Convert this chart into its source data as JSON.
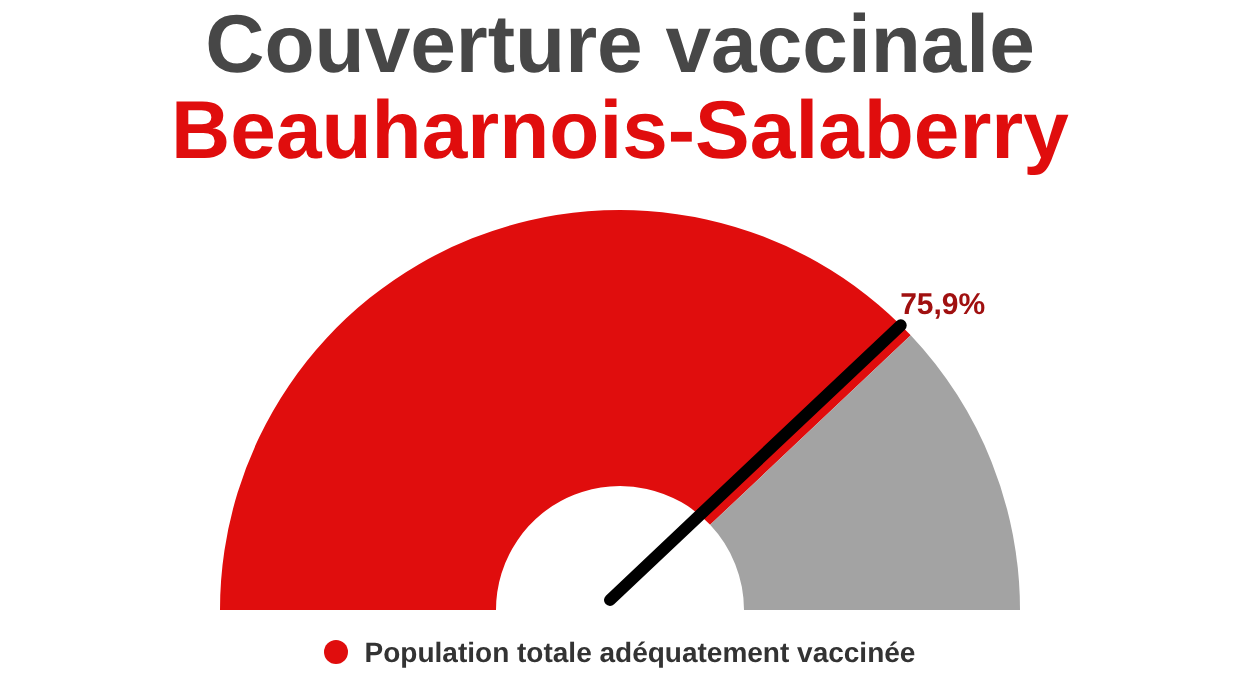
{
  "chart_data": {
    "type": "donut",
    "title": "Couverture vaccinale",
    "subtitle": "Beauharnois-Salaberry",
    "categories": [
      "Population totale adéquatement vaccinée",
      null
    ],
    "values": [
      75.9,
      24.1
    ],
    "colors": [
      "#e00d0d",
      "#a3a3a3"
    ],
    "value_labels": [
      "75,9%",
      null
    ],
    "needle": "Population totale adéquatement vaccinée",
    "legend": "bottom"
  }
}
